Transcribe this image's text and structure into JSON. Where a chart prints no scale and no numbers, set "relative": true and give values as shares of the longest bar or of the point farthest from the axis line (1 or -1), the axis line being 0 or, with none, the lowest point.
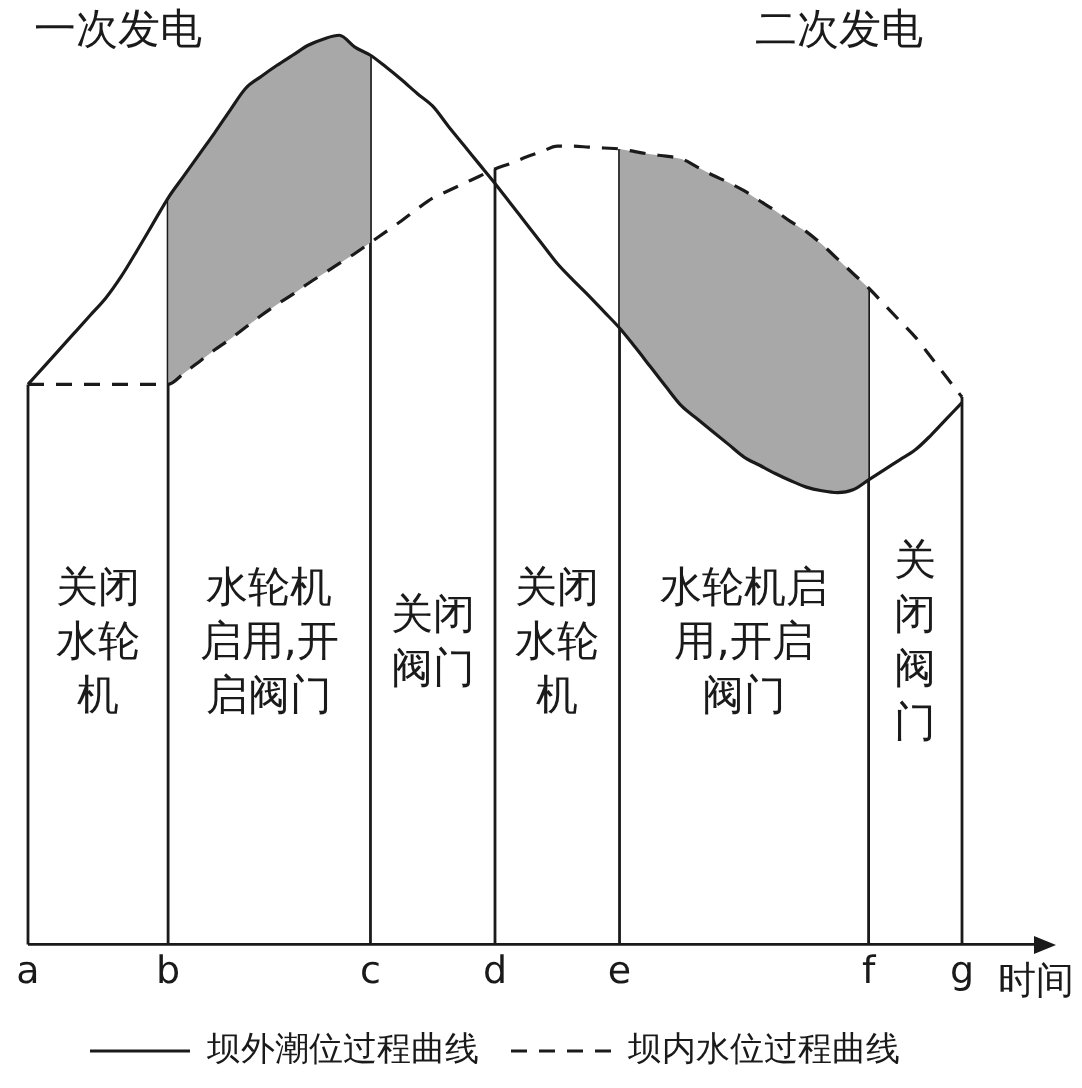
{
  "chart_data": {
    "type": "line",
    "relative": true,
    "xlabel": "时间",
    "categories": [
      "a",
      null,
      null,
      null,
      null,
      null,
      null,
      null,
      null,
      "b",
      null,
      null,
      null,
      null,
      null,
      null,
      null,
      null,
      null,
      null,
      null,
      null,
      "c",
      null,
      null,
      null,
      null,
      null,
      null,
      null,
      "d",
      null,
      null,
      null,
      null,
      null,
      null,
      null,
      "e",
      null,
      null,
      null,
      null,
      null,
      null,
      null,
      null,
      null,
      null,
      null,
      null,
      null,
      null,
      null,
      "f",
      null,
      null,
      null,
      null,
      null,
      "g"
    ],
    "series": [
      {
        "name": "坝外潮位过程曲线",
        "color": "#1a1a1a",
        "line_style": "solid",
        "values": [
          0.616,
          0.635,
          0.654,
          0.673,
          0.692,
          0.711,
          0.735,
          0.763,
          0.792,
          0.821,
          0.845,
          0.869,
          0.893,
          0.918,
          0.942,
          0.955,
          0.967,
          0.978,
          0.989,
          0.996,
          1,
          0.987,
          0.978,
          0.965,
          0.951,
          0.936,
          0.922,
          0.9,
          0.879,
          0.858,
          0.837,
          0.815,
          0.793,
          0.771,
          0.749,
          0.731,
          0.714,
          0.696,
          0.678,
          0.657,
          0.635,
          0.613,
          0.592,
          0.578,
          0.564,
          0.55,
          0.536,
          0.527,
          0.518,
          0.51,
          0.503,
          0.499,
          0.497,
          0.5,
          0.511,
          0.522,
          0.533,
          0.544,
          0.56,
          0.578,
          0.596
        ],
        "lower": [
          null,
          null,
          null,
          null,
          null,
          null,
          null,
          null,
          null,
          0.616,
          0.628,
          0.641,
          0.654,
          0.666,
          0.679,
          0.692,
          0.704,
          0.715,
          0.727,
          0.738,
          0.749,
          0.76,
          0.772,
          null,
          null,
          null,
          null,
          null,
          null,
          null,
          null,
          null,
          null,
          null,
          null,
          null,
          null,
          null,
          null,
          null,
          null,
          null,
          null,
          null,
          null,
          null,
          null,
          null,
          null,
          null,
          null,
          null,
          null,
          null,
          null,
          null,
          null,
          null,
          null,
          null,
          null
        ],
        "upper": [
          null,
          null,
          null,
          null,
          null,
          null,
          null,
          null,
          null,
          0.821,
          0.845,
          0.869,
          0.893,
          0.918,
          0.942,
          0.955,
          0.967,
          0.978,
          0.989,
          0.996,
          1,
          0.987,
          0.978,
          null,
          null,
          null,
          null,
          null,
          null,
          null,
          null,
          null,
          null,
          null,
          null,
          null,
          null,
          null,
          null,
          null,
          null,
          null,
          null,
          null,
          null,
          null,
          null,
          null,
          null,
          null,
          null,
          null,
          null,
          null,
          null,
          null,
          null,
          null,
          null,
          null,
          null
        ]
      },
      {
        "name": "坝内水位过程曲线",
        "color": "#1a1a1a",
        "line_style": "dashed",
        "values": [
          0.616,
          0.616,
          0.616,
          0.616,
          0.616,
          0.616,
          0.616,
          0.616,
          0.616,
          0.616,
          0.628,
          0.641,
          0.654,
          0.666,
          0.679,
          0.692,
          0.704,
          0.715,
          0.727,
          0.738,
          0.749,
          0.76,
          0.772,
          0.784,
          0.796,
          0.809,
          0.821,
          0.829,
          0.837,
          0.845,
          0.853,
          0.859,
          0.866,
          0.872,
          0.878,
          0.878,
          0.877,
          0.876,
          0.875,
          0.872,
          0.869,
          0.867,
          0.864,
          0.855,
          0.846,
          0.838,
          0.829,
          0.818,
          0.807,
          0.795,
          0.784,
          0.77,
          0.754,
          0.738,
          0.722,
          0.704,
          0.686,
          0.668,
          0.646,
          0.624,
          0.602
        ],
        "lower": [
          null,
          null,
          null,
          null,
          null,
          null,
          null,
          null,
          null,
          null,
          null,
          null,
          null,
          null,
          null,
          null,
          null,
          null,
          null,
          null,
          null,
          null,
          null,
          null,
          null,
          null,
          null,
          null,
          null,
          null,
          null,
          null,
          null,
          null,
          null,
          null,
          null,
          null,
          0.678,
          0.657,
          0.635,
          0.613,
          0.592,
          0.578,
          0.564,
          0.55,
          0.536,
          0.527,
          0.518,
          0.51,
          0.503,
          0.499,
          0.497,
          0.5,
          0.511,
          null,
          null,
          null,
          null,
          null,
          null
        ],
        "upper": [
          null,
          null,
          null,
          null,
          null,
          null,
          null,
          null,
          null,
          null,
          null,
          null,
          null,
          null,
          null,
          null,
          null,
          null,
          null,
          null,
          null,
          null,
          null,
          null,
          null,
          null,
          null,
          null,
          null,
          null,
          null,
          null,
          null,
          null,
          null,
          null,
          null,
          null,
          0.875,
          0.872,
          0.869,
          0.867,
          0.864,
          0.855,
          0.846,
          0.838,
          0.829,
          0.818,
          0.807,
          0.795,
          0.784,
          0.77,
          0.754,
          0.738,
          0.722,
          null,
          null,
          null,
          null,
          null,
          null
        ]
      }
    ],
    "ref_lines": [
      {
        "axis": "x",
        "value": "a"
      },
      {
        "axis": "x",
        "value": "b"
      },
      {
        "axis": "x",
        "value": "c"
      },
      {
        "axis": "x",
        "value": "d"
      },
      {
        "axis": "x",
        "value": "e"
      },
      {
        "axis": "x",
        "value": "f"
      },
      {
        "axis": "x",
        "value": "g"
      }
    ],
    "annotations": [
      "一次发电",
      "二次发电",
      "关闭水轮机",
      "水轮机启用,开启阀门",
      "关闭阀门",
      "关闭水轮机",
      "水轮机启用,开启阀门",
      "关闭阀门"
    ],
    "grid": false,
    "legend": "bottom",
    "marker": "none"
  }
}
